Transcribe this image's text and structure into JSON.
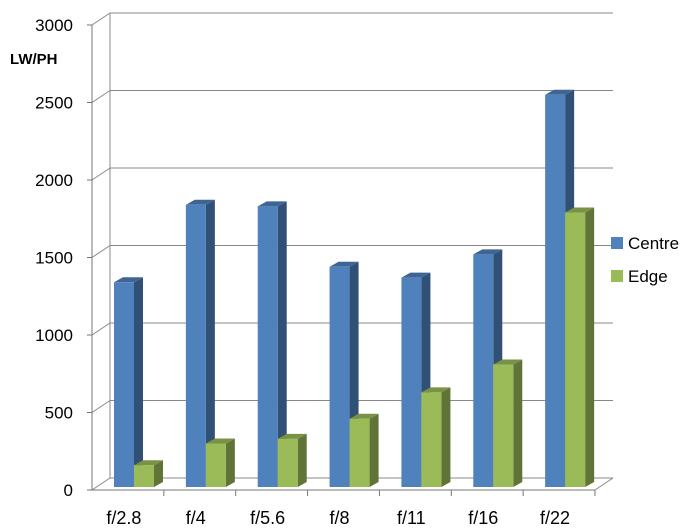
{
  "chart_data": {
    "type": "bar",
    "style": "3d-clustered-column",
    "title": "",
    "xlabel": "",
    "ylabel": "LW/PH",
    "ylim": [
      0,
      3000
    ],
    "yticks": [
      "0",
      "500",
      "1000",
      "1500",
      "2000",
      "2500",
      "3000"
    ],
    "grid": "horizontal",
    "legend_position": "right",
    "categories": [
      "f/2.8",
      "f/4",
      "f/5.6",
      "f/8",
      "f/11",
      "f/16",
      "f/22"
    ],
    "series": [
      {
        "name": "Centre",
        "color": "#4F81BD",
        "values": [
          1340,
          1840,
          1830,
          1440,
          1370,
          1520,
          2550
        ]
      },
      {
        "name": "Edge",
        "color": "#9BBB59",
        "values": [
          160,
          300,
          330,
          460,
          630,
          810,
          1790
        ]
      }
    ]
  }
}
